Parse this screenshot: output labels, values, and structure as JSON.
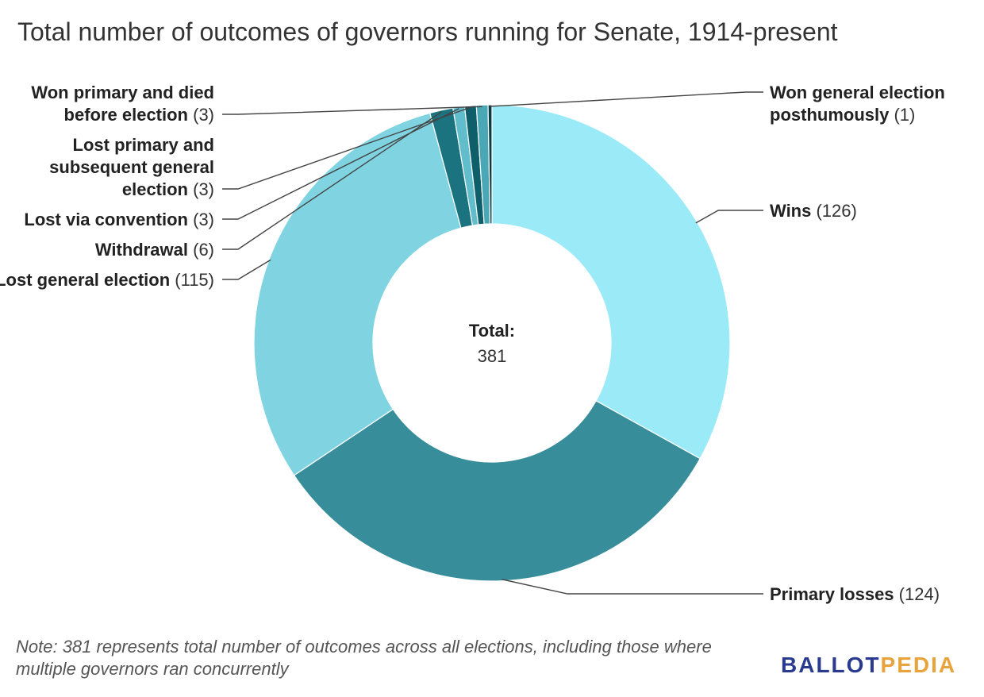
{
  "title": "Total number of outcomes of governors running for Senate, 1914-present",
  "center": {
    "label": "Total:",
    "value": "381"
  },
  "note": "Note: 381 represents total number of outcomes across all elections, including those where multiple governors ran concurrently",
  "logo": {
    "part1": "BALLOT",
    "part2": "PEDIA"
  },
  "chart_data": {
    "type": "pie",
    "variant": "donut",
    "total": 381,
    "slices": [
      {
        "name": "Wins",
        "value": 126,
        "color": "#9beaf7",
        "label_lines": [
          "Wins"
        ]
      },
      {
        "name": "Primary losses",
        "value": 124,
        "color": "#378e9a",
        "label_lines": [
          "Primary losses"
        ]
      },
      {
        "name": "Lost general election",
        "value": 115,
        "color": "#80d4e2",
        "label_lines": [
          "Lost general election"
        ]
      },
      {
        "name": "Withdrawal",
        "value": 6,
        "color": "#1b7380",
        "label_lines": [
          "Withdrawal"
        ]
      },
      {
        "name": "Lost via convention",
        "value": 3,
        "color": "#61bccb",
        "label_lines": [
          "Lost via convention"
        ]
      },
      {
        "name": "Lost primary and subsequent general election",
        "value": 3,
        "color": "#0f5f6b",
        "label_lines": [
          "Lost primary and",
          "subsequent general",
          "election"
        ]
      },
      {
        "name": "Won primary and died before election",
        "value": 3,
        "color": "#4aa7b5",
        "label_lines": [
          "Won primary and died",
          "before election"
        ]
      },
      {
        "name": "Won general election posthumously",
        "value": 1,
        "color": "#0a3a42",
        "label_lines": [
          "Won general election",
          "posthumously"
        ]
      }
    ]
  }
}
